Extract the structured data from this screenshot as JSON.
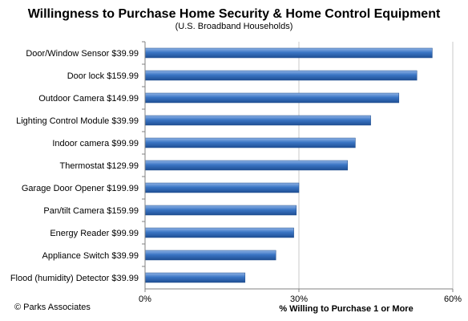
{
  "chart_data": {
    "type": "bar",
    "orientation": "horizontal",
    "title": "Willingness to Purchase Home Security & Home Control Equipment",
    "subtitle": "(U.S. Broadband Households)",
    "xlabel": "% Willing to Purchase 1 or More",
    "ylabel": "",
    "xlim": [
      0,
      60
    ],
    "xticks": [
      "0%",
      "30%",
      "60%"
    ],
    "grid": "vertical gridlines",
    "legend": "none",
    "bar_color": "#3a75c4",
    "categories": [
      "Door/Window Sensor $39.99",
      "Door lock $159.99",
      "Outdoor Camera $149.99",
      "Lighting Control Module $39.99",
      "Indoor camera $99.99",
      "Thermostat $129.99",
      "Garage Door Opener $199.99",
      "Pan/tilt Camera $159.99",
      "Energy Reader $99.99",
      "Appliance Switch $39.99",
      "Flood (humidity) Detector $39.99"
    ],
    "values": [
      56,
      53,
      49.5,
      44,
      41,
      39.5,
      30,
      29.5,
      29,
      25.5,
      19.5
    ]
  },
  "footer": {
    "credit": "© Parks Associates"
  }
}
